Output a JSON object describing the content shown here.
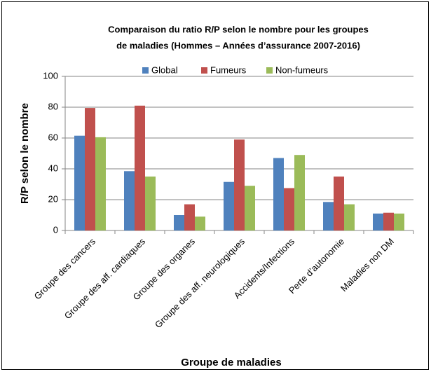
{
  "chart_data": {
    "type": "bar",
    "title": [
      "Comparaison du ratio R/P selon le nombre pour les groupes",
      "de maladies (Hommes – Années d’assurance 2007-2016)"
    ],
    "x_label": "Groupe de maladies",
    "y_label": "R/P selon le nombre",
    "categories": [
      "Groupe des cancers",
      "Groupe des aff. cardiaques",
      "Groupe des organes",
      "Groupe des aff. neurologiques",
      "Accidents/Infections",
      "Perte d’autonomie",
      "Maladies non DM"
    ],
    "series": [
      {
        "name": "Global",
        "color": "#4f81bd",
        "values": [
          61.5,
          38.5,
          10,
          31.5,
          47,
          18.5,
          11
        ]
      },
      {
        "name": "Fumeurs",
        "color": "#c0504d",
        "values": [
          79.5,
          81,
          17,
          59,
          27.5,
          35,
          11.5
        ]
      },
      {
        "name": "Non-fumeurs",
        "color": "#9bbb59",
        "values": [
          60.5,
          35,
          9,
          29,
          49,
          17,
          11
        ]
      }
    ],
    "ylim": [
      0,
      100
    ],
    "yticks": [
      0,
      20,
      40,
      60,
      80,
      100
    ],
    "grid": true,
    "legend": "top"
  }
}
